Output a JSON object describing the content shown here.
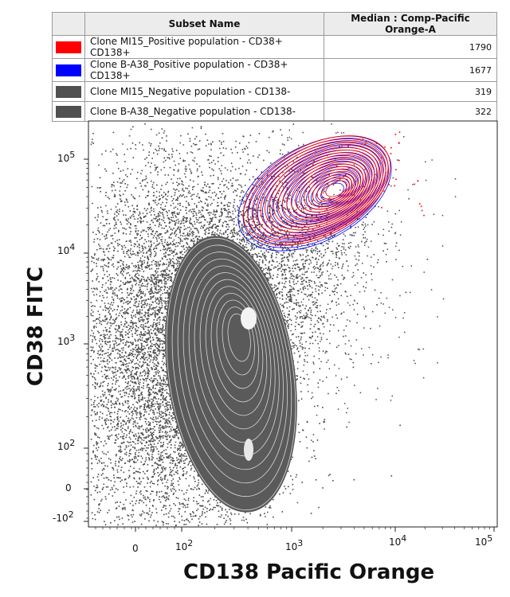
{
  "legend": {
    "header_name": "Subset Name",
    "header_median": "Median : Comp-Pacific Orange-A",
    "rows": [
      {
        "color": "#ff0000",
        "name": "Clone MI15_Positive population - CD38+ CD138+",
        "median": "1790"
      },
      {
        "color": "#0000ff",
        "name": "Clone B-A38_Positive population - CD38+ CD138+",
        "median": "1677"
      },
      {
        "color": "#505050",
        "name": "Clone MI15_Negative population - CD138-",
        "median": "319"
      },
      {
        "color": "#505050",
        "name": "Clone B-A38_Negative population - CD138-",
        "median": "322"
      }
    ]
  },
  "chart_data": {
    "type": "scatter",
    "subtype": "flow-cytometry contour + density dot plot",
    "xlabel": "CD138 Pacific Orange",
    "ylabel": "CD38 FITC",
    "x_scale": "biexponential",
    "y_scale": "biexponential",
    "x_ticks": [
      "0",
      "10^2",
      "10^3",
      "10^4",
      "10^5"
    ],
    "y_ticks": [
      "-10^2",
      "0",
      "10^2",
      "10^3",
      "10^4",
      "10^5"
    ],
    "series": [
      {
        "name": "Clone MI15_Positive population - CD38+ CD138+",
        "color": "#ff0000",
        "center": {
          "x": 2000,
          "y": 45000
        },
        "median_x": 1790
      },
      {
        "name": "Clone B-A38_Positive population - CD38+ CD138+",
        "color": "#0000ff",
        "center": {
          "x": 1900,
          "y": 42000
        },
        "median_x": 1677
      },
      {
        "name": "Clone MI15_Negative population - CD138-",
        "color": "#505050",
        "center": {
          "x": 320,
          "y": 1500
        },
        "median_x": 319
      },
      {
        "name": "Clone B-A38_Negative population - CD138-",
        "color": "#505050",
        "center": {
          "x": 322,
          "y": 1500
        },
        "median_x": 322
      }
    ]
  },
  "axes": {
    "x_tick_labels": [
      {
        "base": "0",
        "exp": ""
      },
      {
        "base": "10",
        "exp": "2"
      },
      {
        "base": "10",
        "exp": "3"
      },
      {
        "base": "10",
        "exp": "4"
      },
      {
        "base": "10",
        "exp": "5"
      }
    ],
    "y_tick_labels": [
      {
        "base": "-10",
        "exp": "2"
      },
      {
        "base": "0",
        "exp": ""
      },
      {
        "base": "10",
        "exp": "2"
      },
      {
        "base": "10",
        "exp": "3"
      },
      {
        "base": "10",
        "exp": "4"
      },
      {
        "base": "10",
        "exp": "5"
      }
    ]
  }
}
